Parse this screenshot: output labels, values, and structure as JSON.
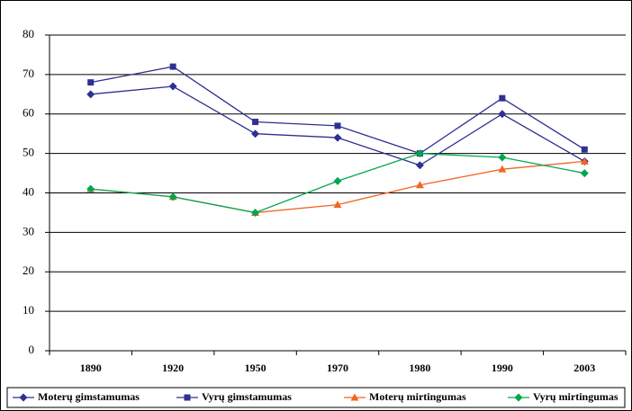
{
  "chart_data": {
    "type": "line",
    "categories": [
      "1890",
      "1920",
      "1950",
      "1970",
      "1980",
      "1990",
      "2003"
    ],
    "series": [
      {
        "name": "Moterų gimstamumas",
        "color": "#2e3192",
        "marker": "diamond",
        "values": [
          65,
          67,
          55,
          54,
          47,
          60,
          48
        ]
      },
      {
        "name": "Vyrų gimstamumas",
        "color": "#2e3192",
        "marker": "square",
        "values": [
          68,
          72,
          58,
          57,
          50,
          64,
          51
        ]
      },
      {
        "name": "Moterų mirtingumas",
        "color": "#f26522",
        "marker": "triangle",
        "values": [
          41,
          39,
          35,
          37,
          42,
          46,
          48
        ]
      },
      {
        "name": "Vyrų mirtingumas",
        "color": "#00a650",
        "marker": "diamond",
        "values": [
          41,
          39,
          35,
          43,
          50,
          49,
          45
        ]
      }
    ],
    "ylim": [
      0,
      80
    ],
    "yticks": [
      0,
      10,
      20,
      30,
      40,
      50,
      60,
      70,
      80
    ],
    "grid": true,
    "legend": "bottom"
  }
}
